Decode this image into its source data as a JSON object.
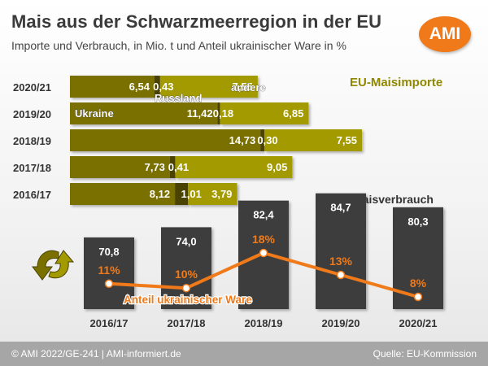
{
  "header": {
    "title": "Mais aus der Schwarzmeerregion in der EU",
    "subtitle": "Importe und Verbrauch, in Mio. t und Anteil ukrainischer Ware in %"
  },
  "logo": {
    "text": "AMI"
  },
  "footer": {
    "left": "© AMI 2022/GE-241 | AMI-informiert.de",
    "right": "Quelle: EU-Kommission"
  },
  "colors": {
    "ukraine": "#7a7000",
    "russland": "#4a4200",
    "andere": "#a39a00",
    "consumption_bar": "#3d3d3d",
    "share_line": "#f07a1a",
    "title_green": "#8f8800"
  },
  "chart_data": [
    {
      "type": "bar",
      "orientation": "horizontal",
      "stacked": true,
      "title": "EU-Maisimporte",
      "categories": [
        "2020/21",
        "2019/20",
        "2018/19",
        "2017/18",
        "2016/17"
      ],
      "series": [
        {
          "name": "Ukraine",
          "values": [
            6.54,
            11.42,
            14.73,
            7.73,
            8.12
          ],
          "value_labels": [
            "6,54",
            "11,42",
            "14,73",
            "7,73",
            "8,12"
          ]
        },
        {
          "name": "Russland",
          "values": [
            0.43,
            0.18,
            0.3,
            0.41,
            1.01
          ],
          "value_labels": [
            "0,43",
            "0,18",
            "0,30",
            "0,41",
            "1,01"
          ]
        },
        {
          "name": "andere",
          "values": [
            7.55,
            6.85,
            7.55,
            9.05,
            3.79
          ],
          "value_labels": [
            "7,55",
            "6,85",
            "7,55",
            "9,05",
            "3,79"
          ]
        }
      ]
    },
    {
      "type": "bar",
      "title": "EU-Maisverbrauch",
      "categories": [
        "2016/17",
        "2017/18",
        "2018/19",
        "2019/20",
        "2020/21"
      ],
      "values": [
        70.8,
        74.0,
        82.4,
        84.7,
        80.3
      ],
      "value_labels": [
        "70,8",
        "74,0",
        "82,4",
        "84,7",
        "80,3"
      ]
    },
    {
      "type": "line",
      "name": "Anteil ukrainischer Ware",
      "categories": [
        "2016/17",
        "2017/18",
        "2018/19",
        "2019/20",
        "2020/21"
      ],
      "values": [
        11,
        10,
        18,
        13,
        8
      ],
      "value_labels": [
        "11%",
        "10%",
        "18%",
        "13%",
        "8%"
      ]
    }
  ]
}
